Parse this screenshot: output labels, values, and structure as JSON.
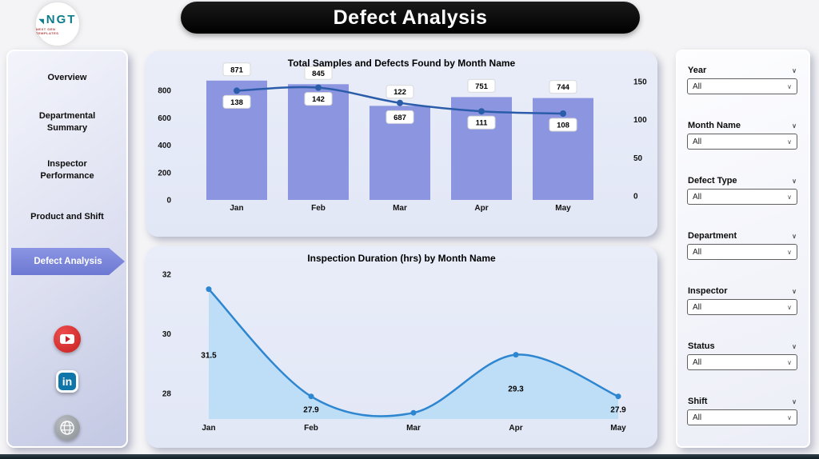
{
  "header": {
    "title": "Defect Analysis"
  },
  "logo": {
    "text": "NGT",
    "subtext": "NEXT GEN TEMPLATES"
  },
  "sidebar": {
    "items": [
      {
        "label": "Overview",
        "active": false
      },
      {
        "label": "Departmental Summary",
        "active": false
      },
      {
        "label": "Inspector Performance",
        "active": false
      },
      {
        "label": "Product and Shift",
        "active": false
      },
      {
        "label": "Defect Analysis",
        "active": true
      }
    ]
  },
  "social": [
    {
      "name": "youtube"
    },
    {
      "name": "linkedin",
      "label": "in"
    },
    {
      "name": "website"
    }
  ],
  "filters": [
    {
      "label": "Year",
      "value": "All"
    },
    {
      "label": "Month Name",
      "value": "All"
    },
    {
      "label": "Defect Type",
      "value": "All"
    },
    {
      "label": "Department",
      "value": "All"
    },
    {
      "label": "Inspector",
      "value": "All"
    },
    {
      "label": "Status",
      "value": "All"
    },
    {
      "label": "Shift",
      "value": "All"
    }
  ],
  "chart_data": [
    {
      "type": "bar",
      "subtype": "combo-bar-line",
      "title": "Total Samples and Defects Found by Month Name",
      "categories": [
        "Jan",
        "Feb",
        "Mar",
        "Apr",
        "May"
      ],
      "series": [
        {
          "name": "Total Samples",
          "type": "bar",
          "values": [
            871,
            845,
            687,
            751,
            744
          ]
        },
        {
          "name": "Defects Found",
          "type": "line",
          "values": [
            138,
            142,
            122,
            111,
            108
          ]
        }
      ],
      "left_axis": {
        "ticks": [
          800,
          600,
          400,
          200,
          0
        ],
        "range": [
          0,
          900
        ]
      },
      "right_axis": {
        "ticks": [
          150,
          100,
          50,
          0
        ],
        "range": [
          0,
          160
        ]
      },
      "grid": false,
      "legend": "none"
    },
    {
      "type": "area",
      "title": "Inspection Duration (hrs) by Month Name",
      "categories": [
        "Jan",
        "Feb",
        "Mar",
        "Apr",
        "May"
      ],
      "values": [
        31.5,
        27.9,
        27.35,
        29.3,
        27.9
      ],
      "data_labels": [
        "31.5",
        "27.9",
        "",
        "29.3",
        "27.9"
      ],
      "y_ticks": [
        32,
        30,
        28
      ],
      "ylim": [
        27,
        32.5
      ],
      "grid": false,
      "legend": "none",
      "label_offsets": [
        86,
        20,
        0,
        46,
        20
      ]
    }
  ],
  "colors": {
    "bar": "#8c95e0",
    "line": "#2a5caa",
    "area_line": "#2e86d1",
    "area_fill": "#b9ddf6",
    "accent": "#7b87d9",
    "title_bg": "#000000",
    "card_bg": "#e6eaf8"
  }
}
